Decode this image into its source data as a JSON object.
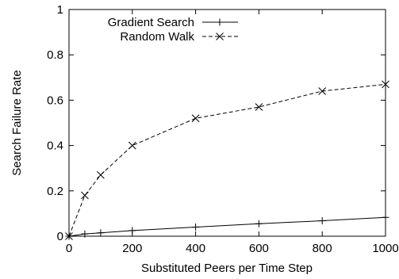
{
  "chart_data": {
    "type": "line",
    "title": "",
    "xlabel": "Substituted Peers per Time Step",
    "ylabel": "Search Failure Rate",
    "xlim": [
      0,
      1000
    ],
    "ylim": [
      0,
      1
    ],
    "xticks": [
      "0",
      "200",
      "400",
      "600",
      "800",
      "1000"
    ],
    "xtick_values": [
      0,
      200,
      400,
      600,
      800,
      1000
    ],
    "yticks": [
      "0",
      "0.2",
      "0.4",
      "0.6",
      "0.8",
      "1"
    ],
    "ytick_values": [
      0,
      0.2,
      0.4,
      0.6,
      0.8,
      1
    ],
    "grid": false,
    "legend_position": "top-left",
    "series": [
      {
        "name": "Gradient Search",
        "line_style": "solid",
        "marker": "plus",
        "color": "#000000",
        "x": [
          0,
          50,
          100,
          200,
          400,
          600,
          800,
          1000
        ],
        "y": [
          0.0,
          0.01,
          0.015,
          0.025,
          0.04,
          0.055,
          0.068,
          0.083
        ]
      },
      {
        "name": "Random Walk",
        "line_style": "dashed",
        "marker": "x",
        "color": "#000000",
        "x": [
          0,
          50,
          100,
          200,
          400,
          600,
          800,
          1000
        ],
        "y": [
          0.0,
          0.18,
          0.27,
          0.4,
          0.52,
          0.57,
          0.64,
          0.67
        ]
      }
    ]
  }
}
